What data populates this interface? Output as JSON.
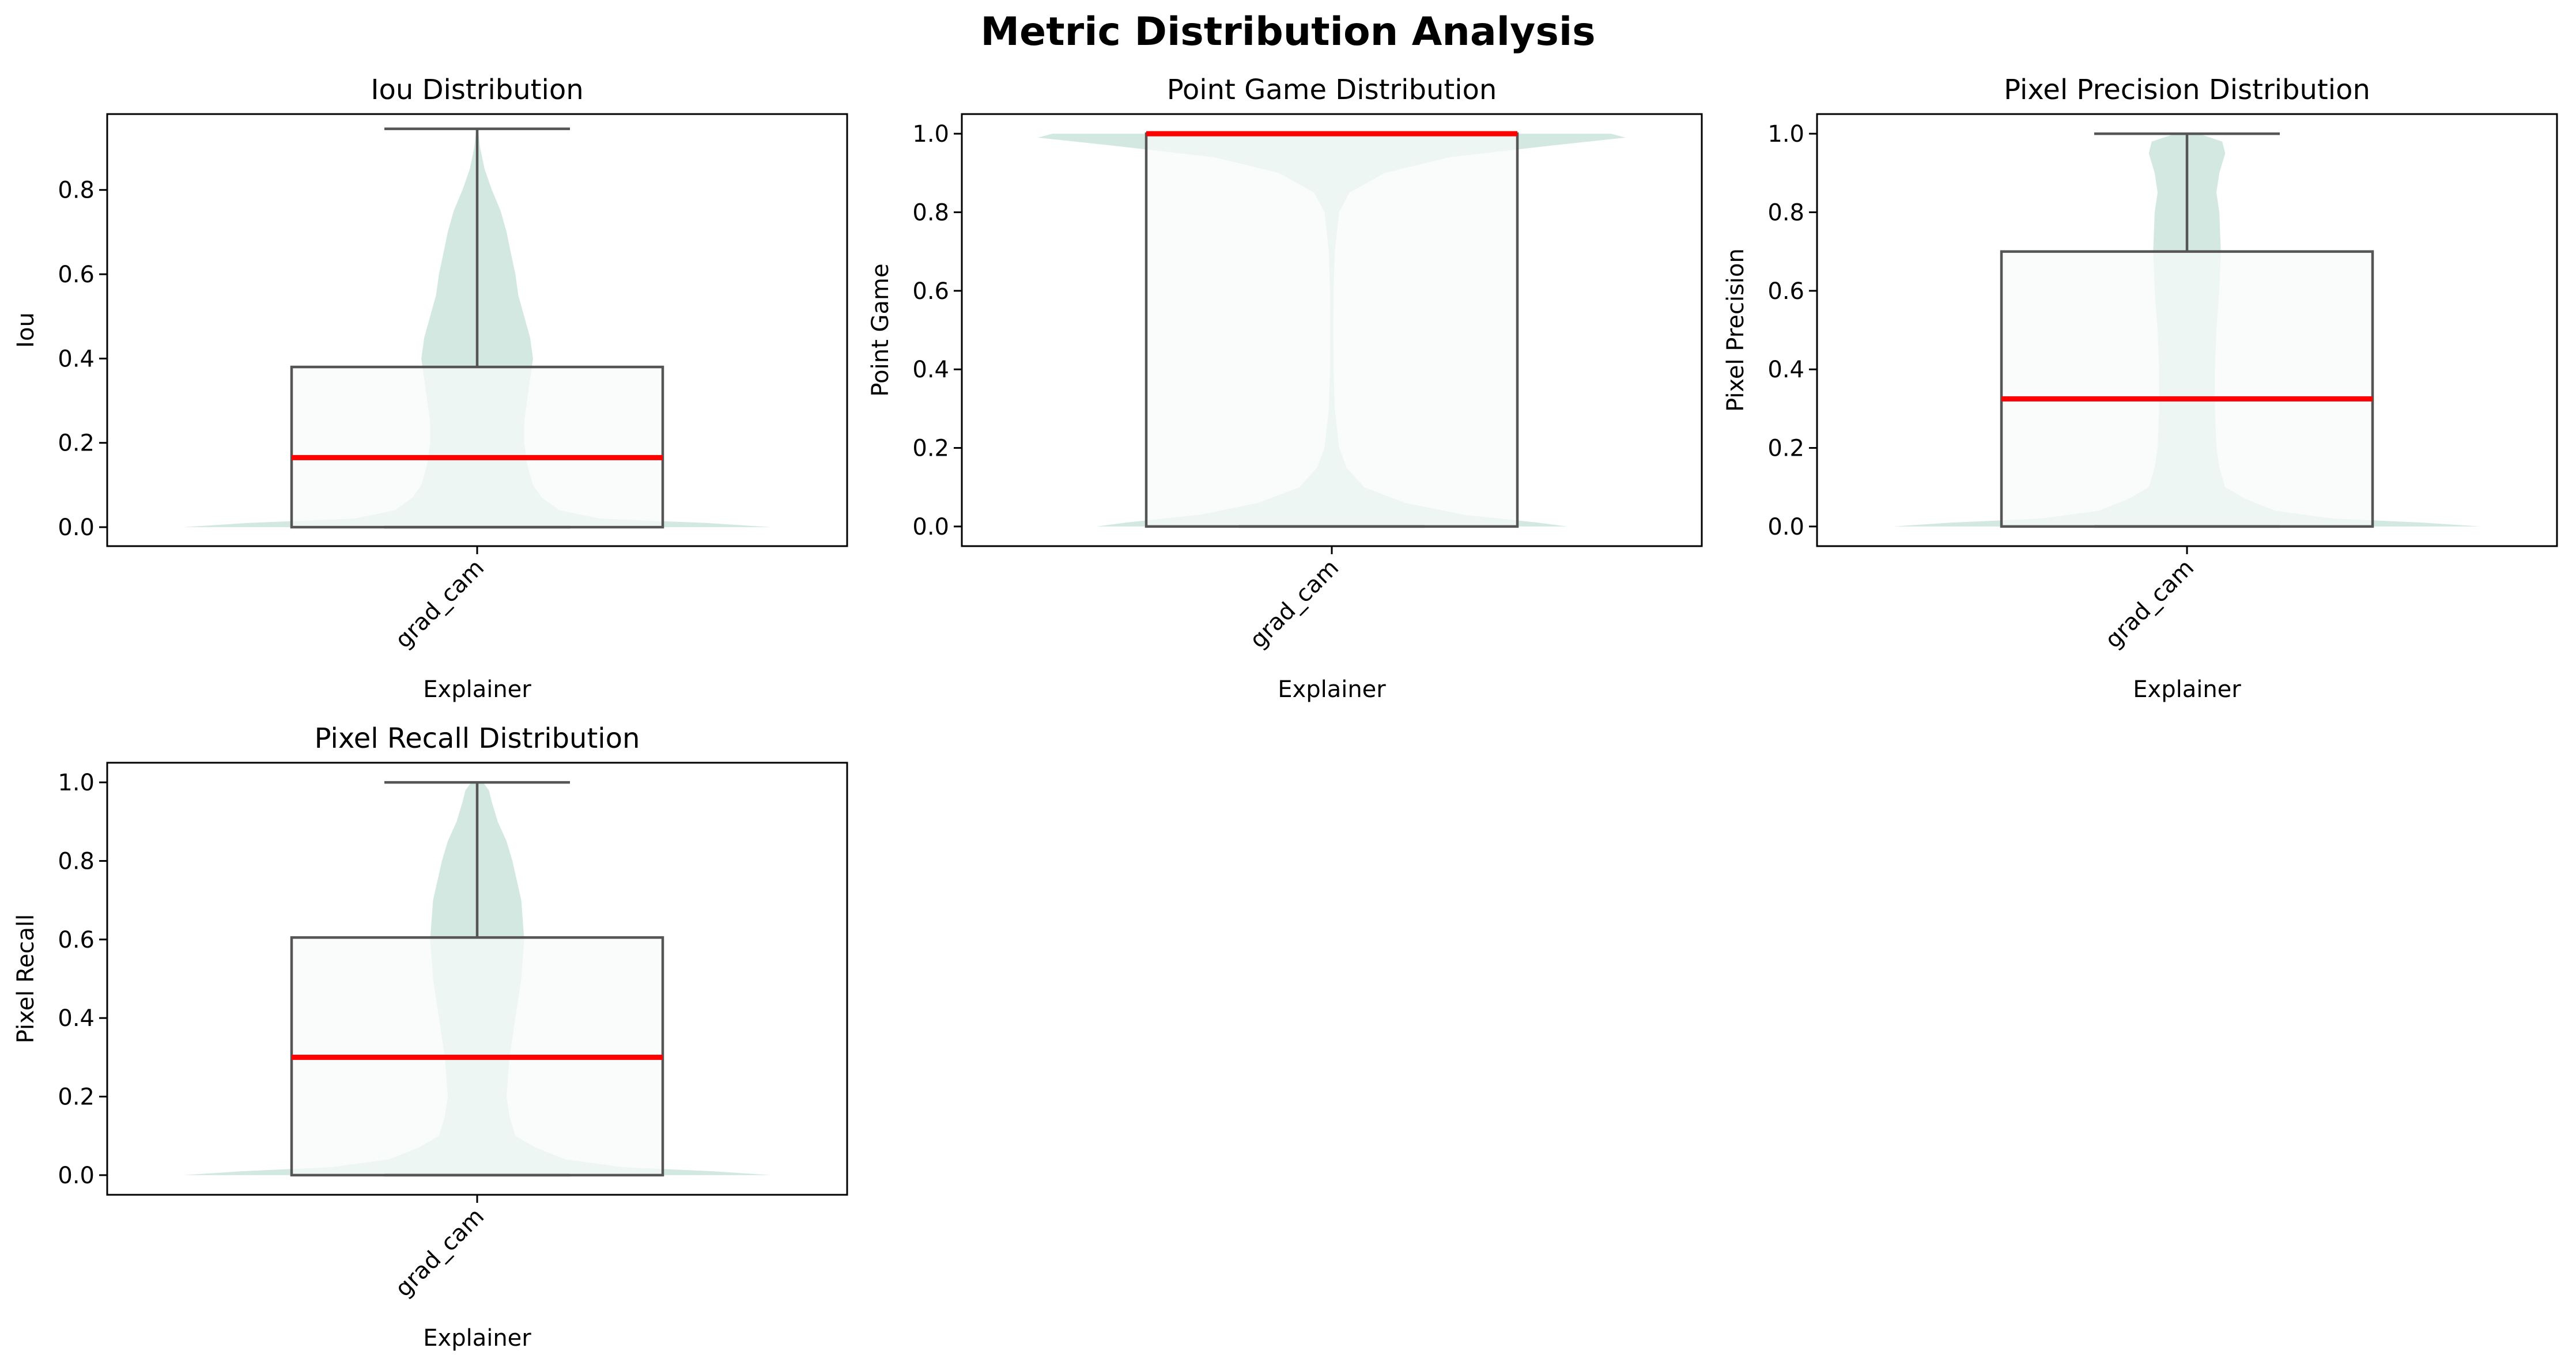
{
  "figure": {
    "title": "Metric Distribution Analysis",
    "colors": {
      "violin": "#d2e8e1",
      "box_fill": "#f7fbf9",
      "box_edge": "#555555",
      "median": "#ff0000"
    }
  },
  "chart_data": [
    {
      "type": "box",
      "overlay": "violin",
      "title": "Iou Distribution",
      "xlabel": "Explainer",
      "ylabel": "Iou",
      "categories": [
        "grad_cam"
      ],
      "ylim": [
        -0.045,
        0.98
      ],
      "yticks": [
        0.0,
        0.2,
        0.4,
        0.6,
        0.8
      ],
      "ytick_labels": [
        "0.0",
        "0.2",
        "0.4",
        "0.6",
        "0.8"
      ],
      "box": {
        "min": 0.0,
        "q1": 0.0,
        "median": 0.165,
        "q3": 0.38,
        "max": 0.945
      },
      "violin": {
        "y": [
          0.0,
          0.01,
          0.02,
          0.04,
          0.07,
          0.1,
          0.15,
          0.2,
          0.25,
          0.3,
          0.35,
          0.4,
          0.45,
          0.5,
          0.55,
          0.6,
          0.65,
          0.7,
          0.75,
          0.8,
          0.85,
          0.9,
          0.945
        ],
        "half_width": [
          1.0,
          0.78,
          0.42,
          0.28,
          0.22,
          0.19,
          0.17,
          0.16,
          0.16,
          0.17,
          0.18,
          0.19,
          0.18,
          0.16,
          0.14,
          0.13,
          0.115,
          0.1,
          0.08,
          0.05,
          0.025,
          0.01,
          0.003
        ]
      }
    },
    {
      "type": "box",
      "overlay": "violin",
      "title": "Point Game Distribution",
      "xlabel": "Explainer",
      "ylabel": "Point Game",
      "categories": [
        "grad_cam"
      ],
      "ylim": [
        -0.05,
        1.05
      ],
      "yticks": [
        0.0,
        0.2,
        0.4,
        0.6,
        0.8,
        1.0
      ],
      "ytick_labels": [
        "0.0",
        "0.2",
        "0.4",
        "0.6",
        "0.8",
        "1.0"
      ],
      "box": {
        "min": 0.0,
        "q1": 0.0,
        "median": 1.0,
        "q3": 1.0,
        "max": 1.0
      },
      "violin": {
        "y": [
          0.0,
          0.01,
          0.03,
          0.06,
          0.1,
          0.15,
          0.2,
          0.3,
          0.4,
          0.5,
          0.6,
          0.7,
          0.8,
          0.85,
          0.9,
          0.94,
          0.97,
          0.99,
          1.0
        ],
        "half_width": [
          0.8,
          0.7,
          0.45,
          0.25,
          0.11,
          0.05,
          0.025,
          0.01,
          0.006,
          0.005,
          0.006,
          0.01,
          0.025,
          0.06,
          0.18,
          0.4,
          0.75,
          1.0,
          0.95
        ]
      }
    },
    {
      "type": "box",
      "overlay": "violin",
      "title": "Pixel Precision Distribution",
      "xlabel": "Explainer",
      "ylabel": "Pixel Precision",
      "categories": [
        "grad_cam"
      ],
      "ylim": [
        -0.05,
        1.05
      ],
      "yticks": [
        0.0,
        0.2,
        0.4,
        0.6,
        0.8,
        1.0
      ],
      "ytick_labels": [
        "0.0",
        "0.2",
        "0.4",
        "0.6",
        "0.8",
        "1.0"
      ],
      "box": {
        "min": 0.0,
        "q1": 0.0,
        "median": 0.325,
        "q3": 0.7,
        "max": 1.0
      },
      "violin": {
        "y": [
          0.0,
          0.01,
          0.02,
          0.04,
          0.07,
          0.1,
          0.15,
          0.2,
          0.3,
          0.4,
          0.5,
          0.6,
          0.7,
          0.8,
          0.85,
          0.9,
          0.95,
          0.98,
          1.0
        ],
        "half_width": [
          1.0,
          0.8,
          0.5,
          0.3,
          0.2,
          0.13,
          0.11,
          0.1,
          0.095,
          0.095,
          0.1,
          0.11,
          0.115,
          0.11,
          0.1,
          0.11,
          0.13,
          0.12,
          0.04
        ]
      }
    },
    {
      "type": "box",
      "overlay": "violin",
      "title": "Pixel Recall Distribution",
      "xlabel": "Explainer",
      "ylabel": "Pixel Recall",
      "categories": [
        "grad_cam"
      ],
      "ylim": [
        -0.05,
        1.05
      ],
      "yticks": [
        0.0,
        0.2,
        0.4,
        0.6,
        0.8,
        1.0
      ],
      "ytick_labels": [
        "0.0",
        "0.2",
        "0.4",
        "0.6",
        "0.8",
        "1.0"
      ],
      "box": {
        "min": 0.0,
        "q1": 0.0,
        "median": 0.3,
        "q3": 0.605,
        "max": 1.0
      },
      "violin": {
        "y": [
          0.0,
          0.01,
          0.02,
          0.04,
          0.07,
          0.1,
          0.15,
          0.2,
          0.3,
          0.4,
          0.5,
          0.6,
          0.7,
          0.8,
          0.85,
          0.9,
          0.95,
          0.98,
          1.0
        ],
        "half_width": [
          1.0,
          0.8,
          0.5,
          0.3,
          0.2,
          0.13,
          0.11,
          0.1,
          0.11,
          0.13,
          0.15,
          0.16,
          0.15,
          0.12,
          0.1,
          0.07,
          0.05,
          0.04,
          0.02
        ]
      }
    }
  ]
}
